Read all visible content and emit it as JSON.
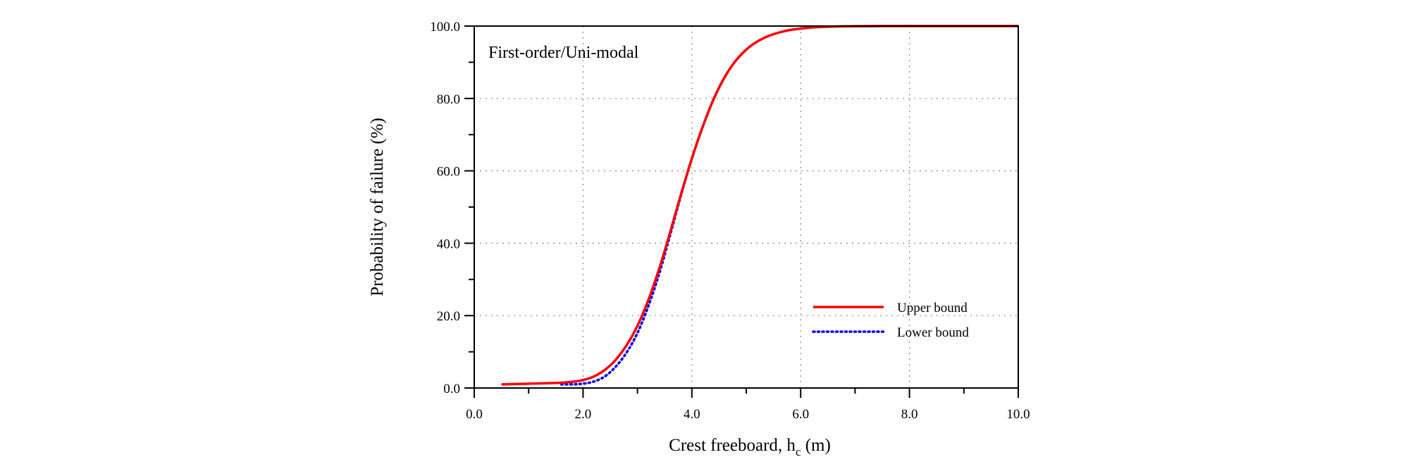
{
  "chart_data": {
    "type": "line",
    "annotation": "First-order/Uni-modal",
    "xlabel": {
      "main": "Crest freeboard,  h",
      "sub": "c",
      "unit": " (m)"
    },
    "ylabel": "Probability of failure (%)",
    "xlim": [
      0,
      10
    ],
    "ylim": [
      0,
      100
    ],
    "xticks": [
      "0.0",
      "2.0",
      "4.0",
      "6.0",
      "8.0",
      "10.0"
    ],
    "yticks": [
      "0.0",
      "20.0",
      "40.0",
      "60.0",
      "80.0",
      "100.0"
    ],
    "grid": true,
    "legend_position": "lower-right",
    "series": [
      {
        "name": "Upper bound",
        "color": "#ff0000",
        "style": "solid",
        "x": [
          0.5,
          1.0,
          1.5,
          1.8,
          2.0,
          2.2,
          2.4,
          2.6,
          2.8,
          3.0,
          3.2,
          3.4,
          3.6,
          3.8,
          4.0,
          4.2,
          4.4,
          4.6,
          4.8,
          5.0,
          5.2,
          5.4,
          5.6,
          5.8,
          6.0,
          6.2,
          6.4,
          6.6,
          6.8,
          7.0,
          7.5,
          8.0,
          9.0,
          10.0
        ],
        "y": [
          1.0,
          1.2,
          1.4,
          1.7,
          2.2,
          3.2,
          5.0,
          7.8,
          11.8,
          17.2,
          24.3,
          33.0,
          43.0,
          53.5,
          63.4,
          72.2,
          79.8,
          85.8,
          90.3,
          93.5,
          95.7,
          97.2,
          98.2,
          98.9,
          99.3,
          99.6,
          99.75,
          99.85,
          99.92,
          99.96,
          99.99,
          100.0,
          100.0,
          100.0
        ]
      },
      {
        "name": "Lower bound",
        "color": "#0000ff",
        "style": "dotted",
        "x": [
          1.6,
          1.8,
          2.0,
          2.2,
          2.4,
          2.6,
          2.8,
          3.0,
          3.2,
          3.4,
          3.6,
          3.8,
          4.0,
          4.2,
          4.4,
          4.6,
          4.8,
          5.0
        ],
        "y": [
          1.0,
          1.0,
          1.2,
          1.8,
          3.2,
          5.9,
          9.8,
          15.2,
          22.6,
          31.6,
          42.2,
          53.2,
          63.4,
          72.2,
          79.8,
          85.8,
          90.3,
          93.5
        ]
      }
    ]
  }
}
